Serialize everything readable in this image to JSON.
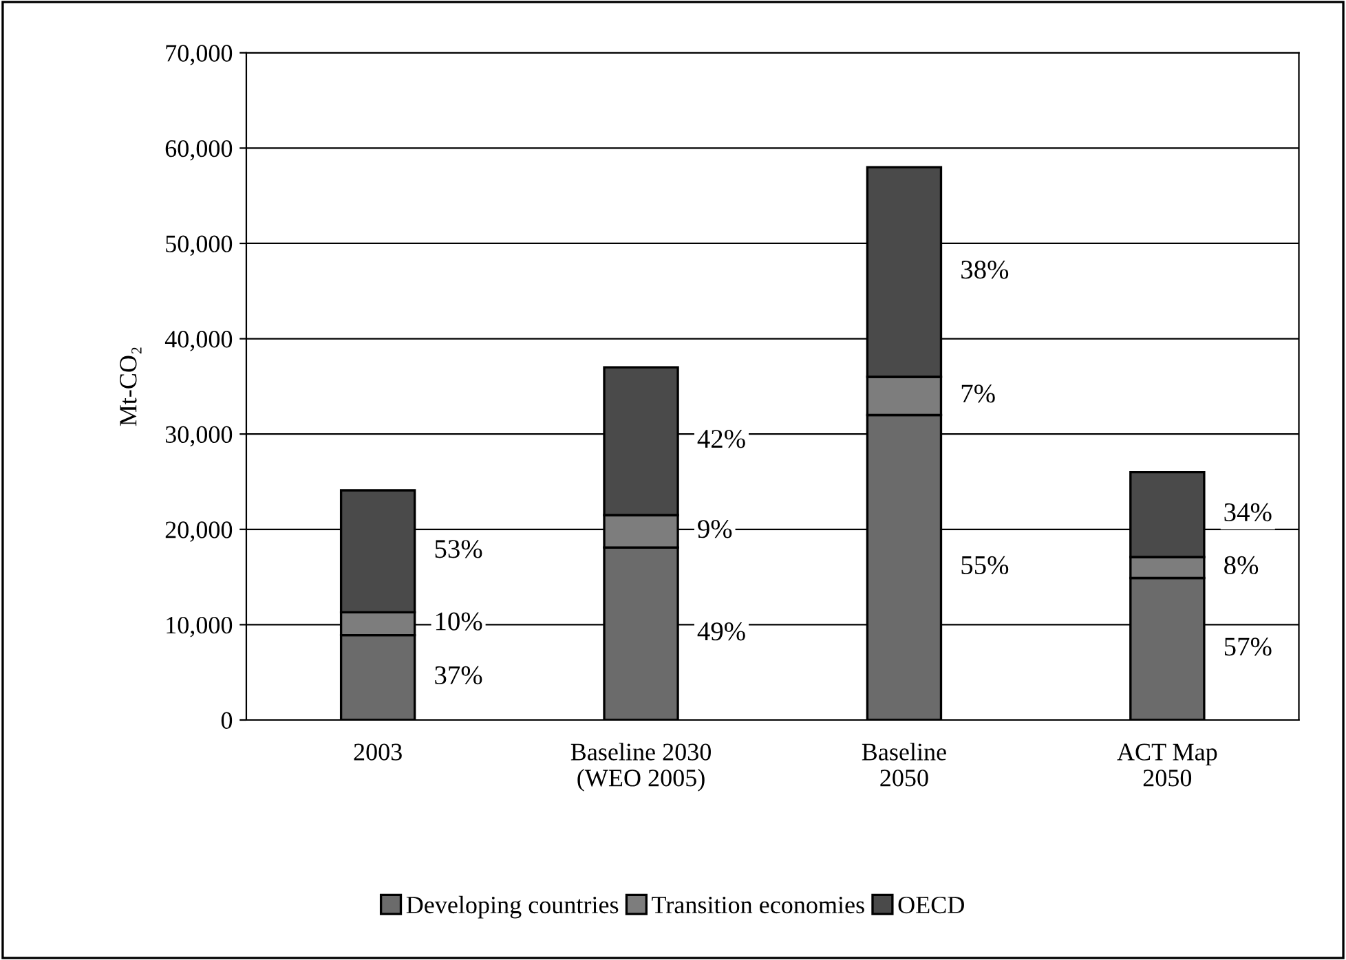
{
  "chart_data": {
    "type": "bar",
    "stacked": true,
    "ylabel": "Mt-CO₂",
    "categories": [
      "2003",
      "Baseline 2030\n(WEO 2005)",
      "Baseline\n2050",
      "ACT Map\n2050"
    ],
    "series": [
      {
        "name": "Developing countries",
        "color": "#6b6b6b",
        "values": [
          8900,
          18100,
          32000,
          14900
        ]
      },
      {
        "name": "Transition economies",
        "color": "#7d7d7d",
        "values": [
          2400,
          3400,
          4000,
          2200
        ]
      },
      {
        "name": "OECD",
        "color": "#4a4a4a",
        "values": [
          12800,
          15500,
          22000,
          8900
        ]
      }
    ],
    "annotations": [
      "37%",
      "10%",
      "53%",
      "49%",
      "9%",
      "42%",
      "55%",
      "7%",
      "38%",
      "57%",
      "8%",
      "34%"
    ],
    "ylim": [
      0,
      70000
    ],
    "yticks": [
      {
        "value": 0,
        "label": "0"
      },
      {
        "value": 10000,
        "label": "10,000"
      },
      {
        "value": 20000,
        "label": "20,000"
      },
      {
        "value": 30000,
        "label": "30,000"
      },
      {
        "value": 40000,
        "label": "40,000"
      },
      {
        "value": 50000,
        "label": "50,000"
      },
      {
        "value": 60000,
        "label": "60,000"
      },
      {
        "value": 70000,
        "label": "70,000"
      }
    ],
    "grid": "y",
    "legend": "bottom"
  }
}
